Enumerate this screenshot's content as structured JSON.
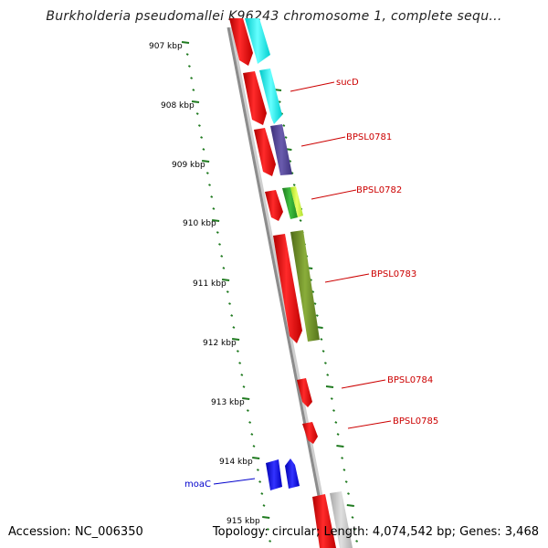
{
  "title": "Burkholderia pseudomallei K96243 chromosome 1, complete sequ...",
  "accession": "Accession: NC_006350",
  "summary": "Topology: circular; Length: 4,074,542 bp; Genes: 3,468",
  "kbp_labels": [
    "907 kbp",
    "908 kbp",
    "909 kbp",
    "910 kbp",
    "911 kbp",
    "912 kbp",
    "913 kbp",
    "914 kbp",
    "915 kbp"
  ],
  "gene_labels": [
    {
      "name": "sucD",
      "color": "#cc0000"
    },
    {
      "name": "BPSL0781",
      "color": "#cc0000"
    },
    {
      "name": "BPSL0782",
      "color": "#cc0000"
    },
    {
      "name": "BPSL0783",
      "color": "#cc0000"
    },
    {
      "name": "BPSL0784",
      "color": "#cc0000"
    },
    {
      "name": "BPSL0785",
      "color": "#cc0000"
    },
    {
      "name": "moaC",
      "color": "#0000cc"
    }
  ],
  "colors": {
    "backbone": "#8c8c8c",
    "tick": "#1f7a1f",
    "gene_red": "#ff0000",
    "gene_cyan": "#00ffff",
    "gene_navy": "#4b3f8f",
    "gene_green": "#2ea02e",
    "gene_lime": "#ccff33",
    "gene_olive": "#6b8e23",
    "gene_blue": "#0000ff",
    "gene_grey": "#c0c0c0"
  }
}
